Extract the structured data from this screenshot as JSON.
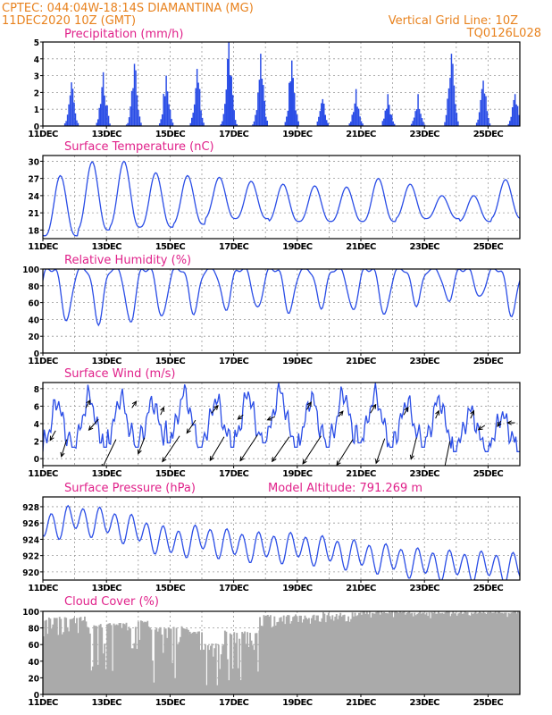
{
  "header": {
    "line1_left": "CPTEC:   044:04W-18:14S   DIAMANTINA (MG)",
    "line2_left": "11DEC2020 10Z (GMT)",
    "line1_right": "Vertical Grid Line: 10Z",
    "line2_right": "TQ0126L028"
  },
  "colors": {
    "header": "#e8821e",
    "panel_title": "#e0218a",
    "series": "#2a4de6",
    "cloud": "#aaaaaa",
    "wind_arrow": "#000000",
    "grid": "#999999"
  },
  "x_axis": {
    "tick_labels": [
      "11DEC",
      "13DEC",
      "15DEC",
      "17DEC",
      "19DEC",
      "21DEC",
      "23DEC",
      "25DEC"
    ],
    "tick_days": [
      0,
      2,
      4,
      6,
      8,
      10,
      12,
      14
    ],
    "range_days": [
      0,
      15
    ]
  },
  "chart_data": [
    {
      "id": "precip",
      "type": "bar",
      "title": "Precipitation (mm/h)",
      "ylim": [
        0,
        5
      ],
      "yticks": [
        0,
        1,
        2,
        3,
        4,
        5
      ],
      "grid": true,
      "series": [
        {
          "daily_peaks": [
            {
              "day": 0.9,
              "peak": 2.6
            },
            {
              "day": 1.9,
              "peak": 3.2
            },
            {
              "day": 2.88,
              "peak": 3.7
            },
            {
              "day": 3.88,
              "peak": 3.0
            },
            {
              "day": 4.85,
              "peak": 3.4
            },
            {
              "day": 5.85,
              "peak": 5.0
            },
            {
              "day": 6.85,
              "peak": 4.3
            },
            {
              "day": 7.83,
              "peak": 3.9
            },
            {
              "day": 8.8,
              "peak": 1.6
            },
            {
              "day": 9.85,
              "peak": 2.2
            },
            {
              "day": 10.85,
              "peak": 1.9
            },
            {
              "day": 11.8,
              "peak": 1.9
            },
            {
              "day": 12.85,
              "peak": 4.3
            },
            {
              "day": 13.85,
              "peak": 2.7
            },
            {
              "day": 14.85,
              "peak": 1.9
            }
          ]
        }
      ]
    },
    {
      "id": "temperature",
      "type": "line",
      "title": "Surface Temperature (nC)",
      "ylim": [
        16.5,
        31
      ],
      "yticks": [
        18,
        21,
        24,
        27,
        30
      ],
      "grid": true,
      "series": [
        {
          "daily": [
            {
              "day": 0.3,
              "min": 17.0,
              "max": 27.5
            },
            {
              "day": 1.3,
              "min": 18.0,
              "max": 29.9
            },
            {
              "day": 2.3,
              "min": 18.5,
              "max": 30.0
            },
            {
              "day": 3.3,
              "min": 18.5,
              "max": 28.0
            },
            {
              "day": 4.3,
              "min": 19.0,
              "max": 27.5
            },
            {
              "day": 5.3,
              "min": 20.0,
              "max": 27.2
            },
            {
              "day": 6.3,
              "min": 20.0,
              "max": 26.5
            },
            {
              "day": 7.3,
              "min": 19.5,
              "max": 26.0
            },
            {
              "day": 8.3,
              "min": 19.5,
              "max": 25.7
            },
            {
              "day": 9.3,
              "min": 19.5,
              "max": 25.5
            },
            {
              "day": 10.3,
              "min": 19.5,
              "max": 27.0
            },
            {
              "day": 11.3,
              "min": 20.0,
              "max": 26.0
            },
            {
              "day": 12.3,
              "min": 20.0,
              "max": 24.0
            },
            {
              "day": 13.3,
              "min": 19.5,
              "max": 24.0
            },
            {
              "day": 14.3,
              "min": 20.0,
              "max": 26.8
            }
          ]
        }
      ]
    },
    {
      "id": "humidity",
      "type": "line",
      "title": "Relative Humidity (%)",
      "ylim": [
        0,
        100
      ],
      "yticks": [
        0,
        20,
        40,
        60,
        80,
        100
      ],
      "grid": true,
      "series": [
        {
          "daily_min": [
            {
              "day": 0.75,
              "min": 38
            },
            {
              "day": 1.75,
              "min": 36
            },
            {
              "day": 2.75,
              "min": 36
            },
            {
              "day": 3.75,
              "min": 42
            },
            {
              "day": 4.75,
              "min": 48
            },
            {
              "day": 5.75,
              "min": 52
            },
            {
              "day": 6.75,
              "min": 52
            },
            {
              "day": 7.75,
              "min": 48
            },
            {
              "day": 8.75,
              "min": 55
            },
            {
              "day": 9.75,
              "min": 50
            },
            {
              "day": 10.75,
              "min": 45
            },
            {
              "day": 11.75,
              "min": 58
            },
            {
              "day": 12.75,
              "min": 62
            },
            {
              "day": 13.75,
              "min": 65
            },
            {
              "day": 14.75,
              "min": 45
            }
          ]
        }
      ]
    },
    {
      "id": "wind",
      "type": "line",
      "title": "Surface Wind (m/s)",
      "ylim": [
        -0.8,
        8.7
      ],
      "yticks": [
        0,
        2,
        4,
        6,
        8
      ],
      "grid": true,
      "series": [
        {
          "daily": [
            {
              "day": 0.3,
              "min": 2.0,
              "max": 6.5
            },
            {
              "day": 1.3,
              "min": 2.5,
              "max": 7.2
            },
            {
              "day": 2.3,
              "min": 2.5,
              "max": 7.0
            },
            {
              "day": 3.3,
              "min": 2.5,
              "max": 6.5
            },
            {
              "day": 4.3,
              "min": 3.0,
              "max": 7.5
            },
            {
              "day": 5.3,
              "min": 2.5,
              "max": 6.8
            },
            {
              "day": 6.3,
              "min": 2.5,
              "max": 7.5
            },
            {
              "day": 7.3,
              "min": 3.0,
              "max": 7.8
            },
            {
              "day": 8.3,
              "min": 2.5,
              "max": 7.0
            },
            {
              "day": 9.3,
              "min": 2.5,
              "max": 7.5
            },
            {
              "day": 10.3,
              "min": 3.0,
              "max": 7.3
            },
            {
              "day": 11.3,
              "min": 2.5,
              "max": 6.5
            },
            {
              "day": 12.3,
              "min": 2.5,
              "max": 6.8
            },
            {
              "day": 13.3,
              "min": 2.0,
              "max": 5.5
            },
            {
              "day": 14.3,
              "min": 2.0,
              "max": 5.0
            }
          ]
        }
      ],
      "arrows": [
        {
          "day": 0.4,
          "y": 3.2,
          "u": -0.5,
          "v": -0.9
        },
        {
          "day": 0.75,
          "y": 2.2,
          "u": -0.5,
          "v": -1.6
        },
        {
          "day": 1.35,
          "y": 5.8,
          "u": 0.4,
          "v": 0.7
        },
        {
          "day": 1.75,
          "y": 4.5,
          "u": -0.9,
          "v": -1.0
        },
        {
          "day": 2.3,
          "y": 2.2,
          "u": -1.3,
          "v": -2.7
        },
        {
          "day": 2.8,
          "y": 5.8,
          "u": 0.4,
          "v": 0.6
        },
        {
          "day": 3.2,
          "y": 2.4,
          "u": -0.6,
          "v": -1.5
        },
        {
          "day": 3.7,
          "y": 5.0,
          "u": 0.3,
          "v": 0.7
        },
        {
          "day": 4.3,
          "y": 2.6,
          "u": -1.6,
          "v": -2.4
        },
        {
          "day": 4.8,
          "y": 4.4,
          "u": -0.8,
          "v": -1.2
        },
        {
          "day": 5.3,
          "y": 5.2,
          "u": 0.6,
          "v": 0.7
        },
        {
          "day": 5.7,
          "y": 2.5,
          "u": -1.3,
          "v": -2.2
        },
        {
          "day": 6.3,
          "y": 5.0,
          "u": -0.5,
          "v": -0.4
        },
        {
          "day": 6.75,
          "y": 2.7,
          "u": -1.6,
          "v": -2.4
        },
        {
          "day": 7.3,
          "y": 4.8,
          "u": -0.7,
          "v": -0.3
        },
        {
          "day": 7.75,
          "y": 2.5,
          "u": -1.6,
          "v": -2.3
        },
        {
          "day": 8.3,
          "y": 5.6,
          "u": 0.4,
          "v": 0.7
        },
        {
          "day": 8.75,
          "y": 2.6,
          "u": -1.7,
          "v": -2.6
        },
        {
          "day": 9.3,
          "y": 4.8,
          "u": 0.4,
          "v": 0.5
        },
        {
          "day": 9.75,
          "y": 2.2,
          "u": -1.5,
          "v": -2.4
        },
        {
          "day": 10.3,
          "y": 5.2,
          "u": 0.5,
          "v": 0.8
        },
        {
          "day": 10.75,
          "y": 2.3,
          "u": -0.8,
          "v": -2.3
        },
        {
          "day": 11.35,
          "y": 5.0,
          "u": 0.4,
          "v": 0.7
        },
        {
          "day": 11.75,
          "y": 2.4,
          "u": -0.5,
          "v": -2.0
        },
        {
          "day": 12.35,
          "y": 4.6,
          "u": 0.3,
          "v": 0.7
        },
        {
          "day": 12.8,
          "y": 2.0,
          "u": -0.6,
          "v": -3.0
        },
        {
          "day": 13.45,
          "y": 4.6,
          "u": 0.3,
          "v": 0.7
        },
        {
          "day": 13.9,
          "y": 3.8,
          "u": -0.6,
          "v": -0.4
        },
        {
          "day": 14.4,
          "y": 4.3,
          "u": -0.3,
          "v": -0.5
        },
        {
          "day": 14.85,
          "y": 4.1,
          "u": -0.7,
          "v": 0.0
        }
      ]
    },
    {
      "id": "pressure",
      "type": "line",
      "title": "Surface Pressure (hPa)",
      "annotation": "Model Altitude: 791.269 m",
      "ylim": [
        919,
        929.2
      ],
      "yticks": [
        920,
        922,
        924,
        926,
        928
      ],
      "grid": true,
      "series": [
        {
          "daily": [
            {
              "day": 0.0,
              "mean": 925.5
            },
            {
              "day": 1.0,
              "mean": 926.5
            },
            {
              "day": 2.0,
              "mean": 926.0
            },
            {
              "day": 3.0,
              "mean": 925.0
            },
            {
              "day": 4.0,
              "mean": 923.5
            },
            {
              "day": 5.0,
              "mean": 924.0
            },
            {
              "day": 6.0,
              "mean": 923.3
            },
            {
              "day": 7.0,
              "mean": 923.0
            },
            {
              "day": 8.0,
              "mean": 923.0
            },
            {
              "day": 9.0,
              "mean": 922.5
            },
            {
              "day": 10.0,
              "mean": 922.0
            },
            {
              "day": 11.0,
              "mean": 921.5
            },
            {
              "day": 12.0,
              "mean": 921.0
            },
            {
              "day": 13.0,
              "mean": 920.8
            },
            {
              "day": 14.0,
              "mean": 920.7
            },
            {
              "day": 15.0,
              "mean": 920.5
            }
          ]
        }
      ]
    },
    {
      "id": "cloud",
      "type": "area",
      "title": "Cloud Cover (%)",
      "ylim": [
        0,
        100
      ],
      "yticks": [
        0,
        20,
        40,
        60,
        80,
        100
      ],
      "grid": true,
      "series": [
        {
          "segments": [
            {
              "from": 0.0,
              "to": 1.5,
              "level": 92,
              "dips_to": 70
            },
            {
              "from": 1.5,
              "to": 2.6,
              "level": 85,
              "dips_to": 20
            },
            {
              "from": 2.6,
              "to": 3.3,
              "level": 88,
              "dips_to": 45
            },
            {
              "from": 3.3,
              "to": 4.6,
              "level": 80,
              "dips_to": 15
            },
            {
              "from": 4.6,
              "to": 5.0,
              "level": 75,
              "dips_to": 25
            },
            {
              "from": 5.0,
              "to": 5.7,
              "level": 60,
              "dips_to": 5
            },
            {
              "from": 5.7,
              "to": 6.8,
              "level": 75,
              "dips_to": 5
            },
            {
              "from": 6.8,
              "to": 8.5,
              "level": 95,
              "dips_to": 80
            },
            {
              "from": 8.5,
              "to": 10.0,
              "level": 97,
              "dips_to": 85
            },
            {
              "from": 10.0,
              "to": 15.0,
              "level": 99,
              "dips_to": 93
            }
          ]
        }
      ]
    }
  ]
}
